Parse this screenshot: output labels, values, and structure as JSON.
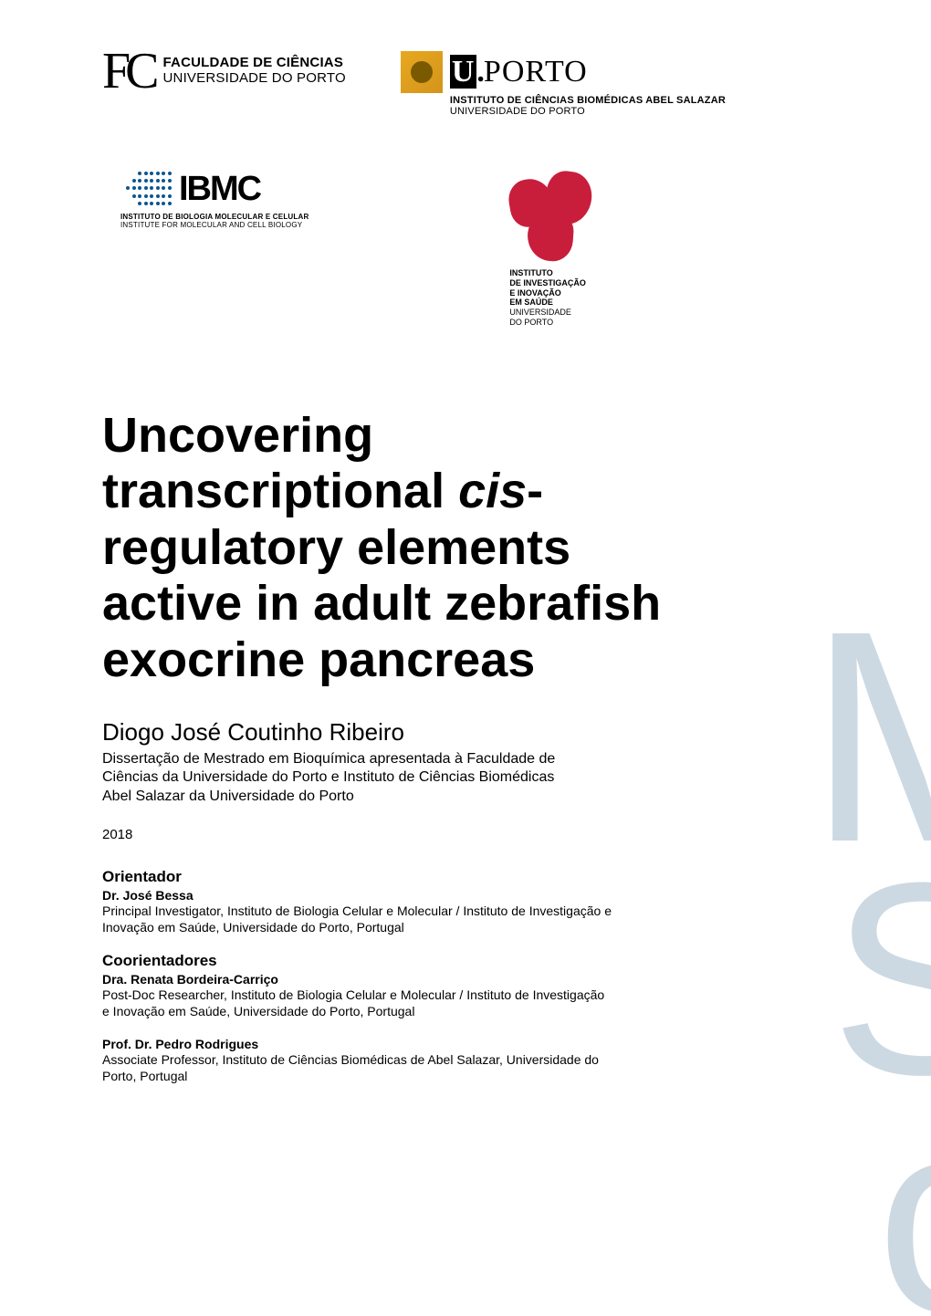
{
  "logos": {
    "fc": {
      "monogram": "FC",
      "line1": "FACULDADE DE CIÊNCIAS",
      "line2": "UNIVERSIDADE DO PORTO"
    },
    "porto": {
      "u": "U",
      "dot": ".",
      "rest": "PORTO",
      "icbas_line1": "INSTITUTO DE CIÊNCIAS BIOMÉDICAS ABEL SALAZAR",
      "icbas_line2": "UNIVERSIDADE DO PORTO"
    },
    "ibmc": {
      "text": "IBMC",
      "sub_pt": "INSTITUTO DE BIOLOGIA MOLECULAR E CELULAR",
      "sub_en": "INSTITUTE FOR MOLECULAR AND CELL BIOLOGY"
    },
    "i3s": {
      "l1": "INSTITUTO",
      "l2": "DE INVESTIGAÇÃO",
      "l3": "E INOVAÇÃO",
      "l4": "EM SAÚDE",
      "l5": "UNIVERSIDADE",
      "l6": "DO PORTO"
    }
  },
  "title": {
    "part1": "Uncovering transcriptional ",
    "italic": "cis",
    "part2": "-regulatory elements active in adult zebrafish exocrine pancreas"
  },
  "author": "Diogo José Coutinho Ribeiro",
  "subtitle": "Dissertação de Mestrado em Bioquímica apresentada à Faculdade de Ciências da Universidade do Porto e Instituto de Ciências Biomédicas Abel Salazar da Universidade do Porto",
  "year": "2018",
  "orientador": {
    "heading": "Orientador",
    "name": "Dr. José Bessa",
    "role": "Principal Investigator, Instituto de Biologia Celular e Molecular / Instituto de Investigação e Inovação em Saúde, Universidade do Porto, Portugal"
  },
  "coorientadores": {
    "heading": "Coorientadores",
    "p1_name": "Dra. Renata Bordeira-Carriço",
    "p1_role": "Post-Doc Researcher, Instituto de Biologia Celular e Molecular / Instituto de Investigação e Inovação em Saúde, Universidade do Porto, Portugal",
    "p2_name": "Prof. Dr. Pedro Rodrigues",
    "p2_role": "Associate Professor, Instituto de Ciências Biomédicas de Abel Salazar, Universidade do Porto, Portugal"
  },
  "watermark": {
    "m": "M",
    "s": "S",
    "c": "c"
  },
  "colors": {
    "text": "#000000",
    "i3s_red": "#c81e3c",
    "ibmc_blue": "#0b5690",
    "porto_gold": "#d4941a",
    "watermark": "#cdd9e2",
    "background": "#ffffff"
  },
  "typography": {
    "title_fontsize_pt": 40,
    "author_fontsize_pt": 20,
    "body_fontsize_pt": 12,
    "font_family": "Arial"
  }
}
